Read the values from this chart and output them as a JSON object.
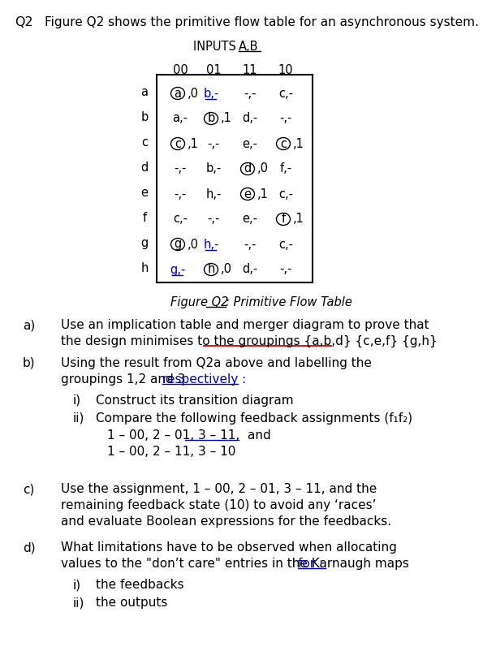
{
  "title_q": "Q2",
  "title_text": "Figure Q2 shows the primitive flow table for an asynchronous system.",
  "col_headers": [
    "00",
    "01",
    "11",
    "10"
  ],
  "row_labels": [
    "a",
    "b",
    "c",
    "d",
    "e",
    "f",
    "g",
    "h"
  ],
  "table_data": [
    [
      {
        "text": "a",
        "circled": true,
        "val": "0"
      },
      {
        "text": "b",
        "underlined": true,
        "val": "-"
      },
      {
        "text": "-,-"
      },
      {
        "text": "c,-"
      }
    ],
    [
      {
        "text": "a,-"
      },
      {
        "text": "b",
        "circled": true,
        "val": "1"
      },
      {
        "text": "d,-"
      },
      {
        "text": "-,-"
      }
    ],
    [
      {
        "text": "c",
        "circled": true,
        "val": "1"
      },
      {
        "text": "-,-"
      },
      {
        "text": "e,-"
      },
      {
        "text": "c",
        "circled": true,
        "val": "1"
      }
    ],
    [
      {
        "text": "-,-"
      },
      {
        "text": "b,-"
      },
      {
        "text": "d",
        "circled": true,
        "val": "0"
      },
      {
        "text": "f,-"
      }
    ],
    [
      {
        "text": "-,-"
      },
      {
        "text": "h,-"
      },
      {
        "text": "e",
        "circled": true,
        "val": "1"
      },
      {
        "text": "c,-"
      }
    ],
    [
      {
        "text": "c,-"
      },
      {
        "text": "-,-"
      },
      {
        "text": "e,-"
      },
      {
        "text": "f",
        "circled": true,
        "val": "1"
      }
    ],
    [
      {
        "text": "g",
        "circled": true,
        "val": "0"
      },
      {
        "text": "h",
        "underlined": true,
        "val": "-"
      },
      {
        "text": "-,-"
      },
      {
        "text": "c,-"
      }
    ],
    [
      {
        "text": "g",
        "underlined": true,
        "val": "-"
      },
      {
        "text": "h",
        "circled": true,
        "val": "0"
      },
      {
        "text": "d,-"
      },
      {
        "text": "-,-"
      }
    ]
  ],
  "bg_color": "#ffffff",
  "text_color": "#000000",
  "blue_color": "#0000cc",
  "red_color": "#cc0000"
}
